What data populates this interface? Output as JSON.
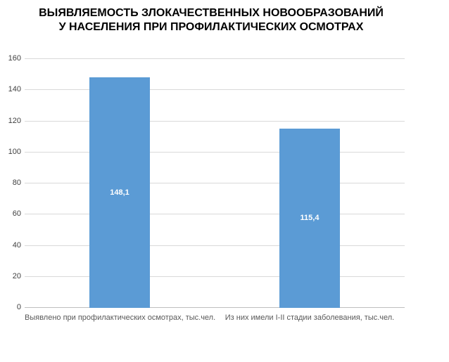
{
  "title": {
    "line1": "ВЫЯВЛЯЕМОСТЬ ЗЛОКАЧЕСТВЕННЫХ НОВООБРАЗОВАНИЙ",
    "line2": "У НАСЕЛЕНИЯ ПРИ ПРОФИЛАКТИЧЕСКИХ ОСМОТРАХ"
  },
  "chart_data": {
    "type": "bar",
    "title": "ВЫЯВЛЯЕМОСТЬ ЗЛОКАЧЕСТВЕННЫХ НОВООБРАЗОВАНИЙ У НАСЕЛЕНИЯ ПРИ ПРОФИЛАКТИЧЕСКИХ ОСМОТРАХ",
    "categories": [
      "Выявлено при профилактических осмотрах, тыс.чел.",
      "Из них имели I-II стадии заболевания, тыс.чел."
    ],
    "values": [
      148.1,
      115.4
    ],
    "value_labels": [
      "148,1",
      "115,4"
    ],
    "xlabel": "",
    "ylabel": "",
    "ylim": [
      0,
      160
    ],
    "yticks": [
      0,
      20,
      40,
      60,
      80,
      100,
      120,
      140,
      160
    ],
    "grid": true,
    "legend": "none",
    "value_label_position": "center",
    "colors": {
      "bar": "#5B9BD5",
      "value_label": "#FFFFFF",
      "gridline": "#D9D9D9",
      "axis_line": "#BFBFBF",
      "tick_label": "#404040",
      "category_label": "#595959",
      "title": "#000000"
    }
  }
}
